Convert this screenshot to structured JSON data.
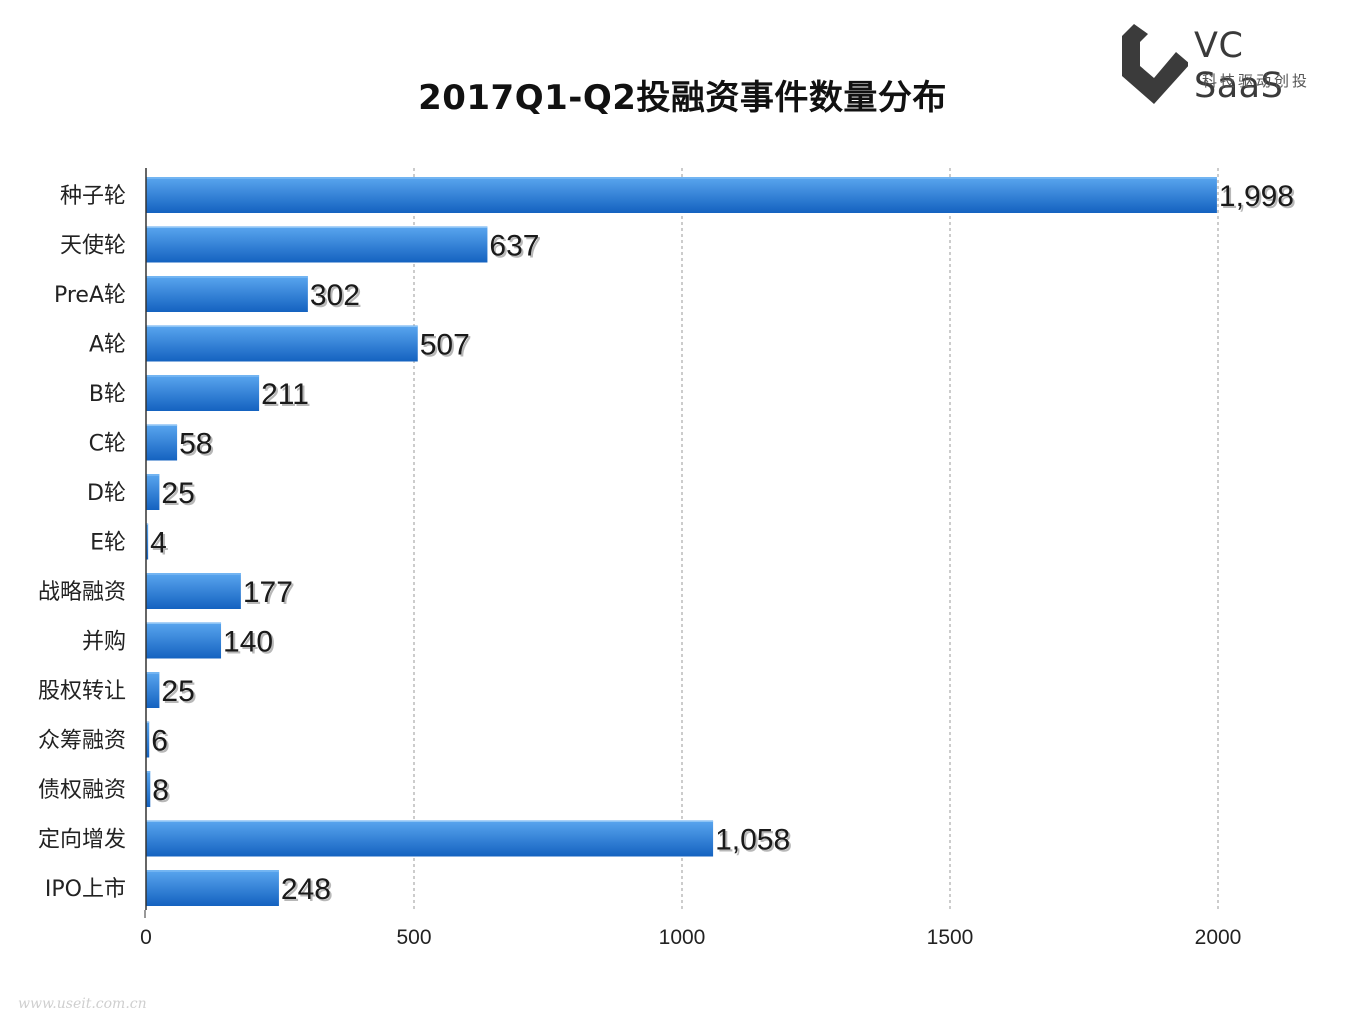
{
  "header": {
    "title": "2017Q1-Q2投融资事件数量分布"
  },
  "logo": {
    "brand": "VC SaaS",
    "tagline": "科技驱动创投",
    "icon": "vc-saas-logo-icon"
  },
  "watermark": {
    "text": "www.useit.com.cn"
  },
  "colors": {
    "bar_top": "#5aa6ef",
    "bar_bottom": "#1462c0",
    "grid": "#9a9a9a",
    "axis": "#333333"
  },
  "chart_data": {
    "type": "bar",
    "orientation": "horizontal",
    "title": "2017Q1-Q2投融资事件数量分布",
    "categories": [
      "种子轮",
      "天使轮",
      "PreA轮",
      "A轮",
      "B轮",
      "C轮",
      "D轮",
      "E轮",
      "战略融资",
      "并购",
      "股权转让",
      "众筹融资",
      "债权融资",
      "定向增发",
      "IPO上市"
    ],
    "values": [
      1998,
      637,
      302,
      507,
      211,
      58,
      25,
      4,
      177,
      140,
      25,
      6,
      8,
      1058,
      248
    ],
    "value_labels": [
      "1,998",
      "637",
      "302",
      "507",
      "211",
      "58",
      "25",
      "4",
      "177",
      "140",
      "25",
      "6",
      "8",
      "1,058",
      "248"
    ],
    "xlim": [
      0,
      2000
    ],
    "xticks": [
      0,
      500,
      1000,
      1500,
      2000
    ],
    "xtick_labels": [
      "0",
      "500",
      "1000",
      "1500",
      "2000"
    ],
    "xlabel": "",
    "ylabel": "",
    "grid": "vertical dashed",
    "legend": "none"
  }
}
